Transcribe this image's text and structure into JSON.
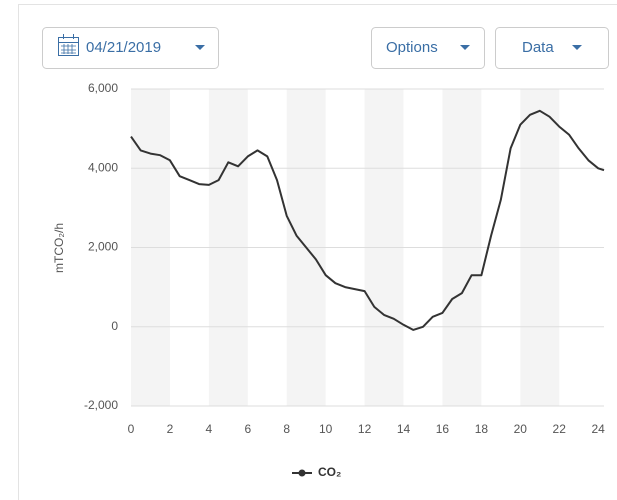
{
  "controls": {
    "date": "04/21/2019",
    "options": "Options",
    "data": "Data"
  },
  "chart_data": {
    "type": "line",
    "ylabel": "mTCO₂/h",
    "x": [
      0,
      0.5,
      1,
      1.5,
      2,
      2.5,
      3,
      3.5,
      4,
      4.5,
      5,
      5.5,
      6,
      6.5,
      7,
      7.5,
      8,
      8.5,
      9,
      9.5,
      10,
      10.5,
      11,
      11.5,
      12,
      12.5,
      13,
      13.5,
      14,
      14.5,
      15,
      15.5,
      16,
      16.5,
      17,
      17.5,
      18,
      18.5,
      19,
      19.5,
      20,
      20.5,
      21,
      21.5,
      22,
      22.5,
      23,
      23.5,
      24,
      24.3
    ],
    "series": [
      {
        "name": "CO₂",
        "color": "#333333",
        "values": [
          4800,
          4450,
          4370,
          4330,
          4200,
          3800,
          3700,
          3600,
          3580,
          3700,
          4150,
          4050,
          4300,
          4450,
          4300,
          3700,
          2800,
          2300,
          2000,
          1700,
          1300,
          1100,
          1000,
          950,
          900,
          500,
          300,
          200,
          50,
          -80,
          0,
          250,
          350,
          700,
          850,
          1300,
          1300,
          2300,
          3200,
          4500,
          5100,
          5350,
          5450,
          5300,
          5050,
          4850,
          4500,
          4200,
          4000,
          3950
        ]
      }
    ],
    "xlim": [
      0,
      24.3
    ],
    "xticks": [
      0,
      2,
      4,
      6,
      8,
      10,
      12,
      14,
      16,
      18,
      20,
      22,
      24
    ],
    "ylim": [
      -2000,
      6000
    ],
    "yticks": [
      {
        "value": -2000,
        "label": "-2,000"
      },
      0,
      {
        "value": 2000,
        "label": "2,000"
      },
      {
        "value": 4000,
        "label": "4,000"
      },
      {
        "value": 6000,
        "label": "6,000"
      }
    ],
    "grid": true,
    "bands": true,
    "legend": "bottom"
  }
}
